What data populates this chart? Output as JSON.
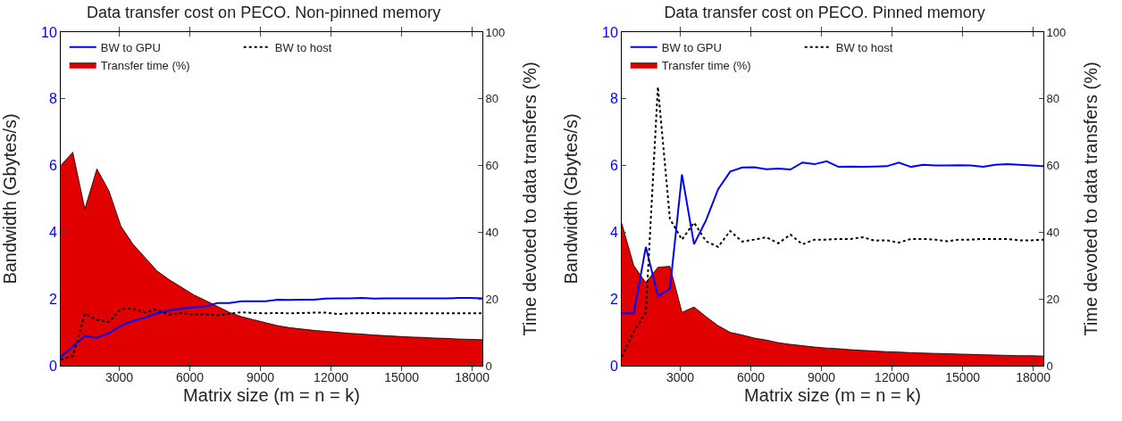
{
  "chart_data": [
    {
      "type": "line",
      "title": "Data transfer cost on PECO. Non-pinned memory",
      "xlabel": "Matrix size (m = n = k)",
      "ylabel": "Bandwidth (Gbytes/s)",
      "y2label": "Time devoted to data transfers (%)",
      "x": [
        512,
        1024,
        1536,
        2048,
        2560,
        3072,
        3584,
        4096,
        4608,
        5120,
        5632,
        6144,
        6656,
        7168,
        7680,
        8192,
        8704,
        9216,
        9728,
        10240,
        10752,
        11264,
        11776,
        12288,
        12800,
        13312,
        13824,
        14336,
        14848,
        15360,
        15872,
        16384,
        16896,
        17408,
        17920,
        18432
      ],
      "xlim": [
        512,
        18432
      ],
      "xticks": [
        3000,
        6000,
        9000,
        12000,
        15000,
        18000
      ],
      "ylim": [
        0,
        10
      ],
      "yticks": [
        0,
        2,
        4,
        6,
        8,
        10
      ],
      "y2lim": [
        0,
        100
      ],
      "y2ticks": [
        0,
        20,
        40,
        60,
        80,
        100
      ],
      "grid": false,
      "legend": "top",
      "marker": "none",
      "series": [
        {
          "name": "BW to GPU",
          "color": "#0000ff",
          "line_style": "solid",
          "values": [
            0.27,
            0.58,
            0.89,
            0.84,
            0.98,
            1.2,
            1.35,
            1.44,
            1.57,
            1.66,
            1.71,
            1.75,
            1.78,
            1.88,
            1.88,
            1.93,
            1.93,
            1.93,
            1.98,
            1.97,
            1.98,
            1.98,
            2.01,
            2.02,
            2.02,
            2.03,
            2.01,
            2.02,
            2.02,
            2.02,
            2.02,
            2.02,
            2.02,
            2.03,
            2.03,
            2.02
          ]
        },
        {
          "name": "BW to host",
          "color": "#000000",
          "line_style": "dotted",
          "values": [
            0.18,
            0.29,
            1.56,
            1.38,
            1.31,
            1.71,
            1.71,
            1.6,
            1.69,
            1.53,
            1.58,
            1.54,
            1.55,
            1.51,
            1.56,
            1.6,
            1.58,
            1.57,
            1.58,
            1.57,
            1.58,
            1.59,
            1.59,
            1.55,
            1.57,
            1.57,
            1.58,
            1.57,
            1.57,
            1.57,
            1.57,
            1.57,
            1.57,
            1.57,
            1.57,
            1.57
          ]
        },
        {
          "name": "Transfer time (%)",
          "type": "area",
          "axis": "y2",
          "color": "#e00000",
          "values": [
            60,
            64,
            47,
            59,
            52.4,
            41.8,
            36.4,
            32.4,
            28.4,
            25.8,
            23.6,
            21.3,
            19.6,
            17.8,
            16,
            14.7,
            13.8,
            12.9,
            12,
            11.4,
            11,
            10.6,
            10.3,
            10,
            9.7,
            9.5,
            9.2,
            9,
            8.8,
            8.6,
            8.5,
            8.3,
            8.2,
            8,
            7.9,
            7.8
          ]
        }
      ]
    },
    {
      "type": "line",
      "title": "Data transfer cost on PECO. Pinned memory",
      "xlabel": "Matrix size (m = n = k)",
      "ylabel": "Bandwidth (Gbytes/s)",
      "y2label": "Time devoted to data transfers (%)",
      "x": [
        512,
        1024,
        1536,
        2048,
        2560,
        3072,
        3584,
        4096,
        4608,
        5120,
        5632,
        6144,
        6656,
        7168,
        7680,
        8192,
        8704,
        9216,
        9728,
        10240,
        10752,
        11264,
        11776,
        12288,
        12800,
        13312,
        13824,
        14336,
        14848,
        15360,
        15872,
        16384,
        16896,
        17408,
        17920,
        18432
      ],
      "xlim": [
        512,
        18432
      ],
      "xticks": [
        3000,
        6000,
        9000,
        12000,
        15000,
        18000
      ],
      "ylim": [
        0,
        10
      ],
      "yticks": [
        0,
        2,
        4,
        6,
        8,
        10
      ],
      "y2lim": [
        0,
        100
      ],
      "y2ticks": [
        0,
        20,
        40,
        60,
        80,
        100
      ],
      "grid": false,
      "legend": "top",
      "marker": "none",
      "series": [
        {
          "name": "BW to GPU",
          "color": "#0000ff",
          "line_style": "solid",
          "values": [
            1.57,
            1.57,
            3.56,
            2.09,
            2.31,
            5.73,
            3.64,
            4.36,
            5.29,
            5.82,
            5.94,
            5.95,
            5.89,
            5.91,
            5.88,
            6.09,
            6.04,
            6.13,
            5.96,
            5.97,
            5.96,
            5.97,
            5.98,
            6.09,
            5.96,
            6.02,
            6.0,
            6.0,
            6.01,
            6.0,
            5.96,
            6.02,
            6.04,
            6.02,
            6.0,
            5.98
          ]
        },
        {
          "name": "BW to host",
          "color": "#000000",
          "line_style": "dotted",
          "values": [
            0.27,
            1.02,
            1.6,
            8.36,
            4.4,
            3.78,
            4.29,
            3.73,
            3.56,
            4.04,
            3.72,
            3.78,
            3.85,
            3.67,
            3.93,
            3.64,
            3.78,
            3.78,
            3.8,
            3.8,
            3.85,
            3.75,
            3.76,
            3.69,
            3.8,
            3.8,
            3.78,
            3.73,
            3.78,
            3.78,
            3.8,
            3.8,
            3.8,
            3.76,
            3.76,
            3.78
          ]
        },
        {
          "name": "Transfer time (%)",
          "type": "area",
          "axis": "y2",
          "color": "#e00000",
          "values": [
            42.7,
            30,
            24.9,
            29.5,
            29.8,
            16,
            17.6,
            14.7,
            12,
            10,
            9.2,
            8.3,
            7.7,
            6.9,
            6.4,
            6,
            5.6,
            5.3,
            5.1,
            4.8,
            4.6,
            4.4,
            4.2,
            4.1,
            3.9,
            3.8,
            3.7,
            3.6,
            3.5,
            3.4,
            3.3,
            3.2,
            3.1,
            3,
            3,
            2.9
          ]
        }
      ]
    }
  ]
}
